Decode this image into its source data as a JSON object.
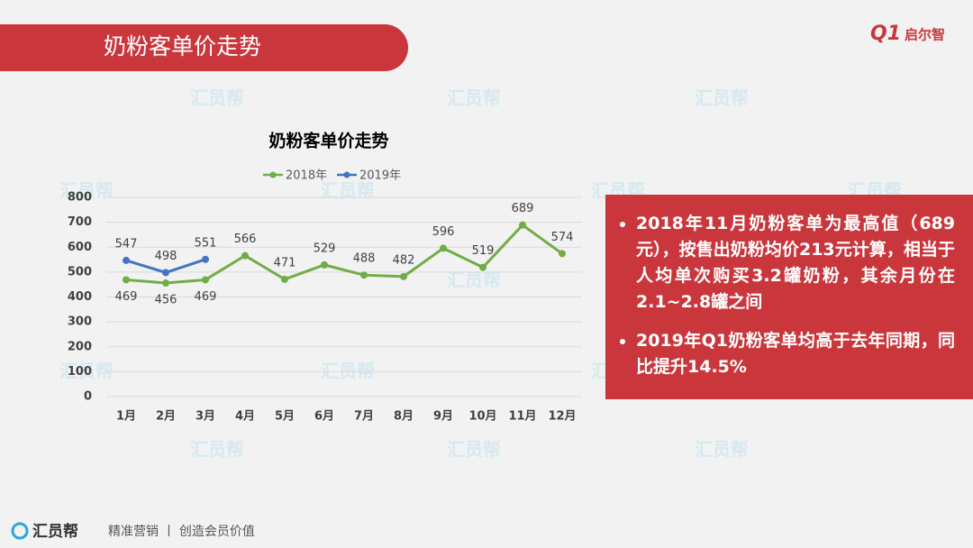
{
  "header": {
    "title": "奶粉客单价走势",
    "logo_mark": "Q1",
    "logo": "启尔智"
  },
  "watermark": "汇员帮",
  "chart_data": {
    "type": "line",
    "title": "奶粉客单价走势",
    "categories": [
      "1月",
      "2月",
      "3月",
      "4月",
      "5月",
      "6月",
      "7月",
      "8月",
      "9月",
      "10月",
      "11月",
      "12月"
    ],
    "series": [
      {
        "name": "2018年",
        "color": "#70ad47",
        "values": [
          469,
          456,
          469,
          566,
          471,
          529,
          488,
          482,
          596,
          519,
          689,
          574
        ]
      },
      {
        "name": "2019年",
        "color": "#4472c4",
        "values": [
          547,
          498,
          551,
          null,
          null,
          null,
          null,
          null,
          null,
          null,
          null,
          null
        ]
      }
    ],
    "ylim": [
      0,
      800
    ],
    "yticks": [
      0,
      100,
      200,
      300,
      400,
      500,
      600,
      700,
      800
    ],
    "grid": true,
    "legend": "top"
  },
  "notes": [
    "2018年11月奶粉客单为最高值（689元），按售出奶粉均价213元计算，相当于人均单次购买3.2罐奶粉，其余月份在2.1~2.8罐之间",
    "2019年Q1奶粉客单均高于去年同期，同比提升14.5%"
  ],
  "footer": {
    "brand": "汇员帮",
    "slogan": "精准营销 丨 创造会员价值"
  }
}
